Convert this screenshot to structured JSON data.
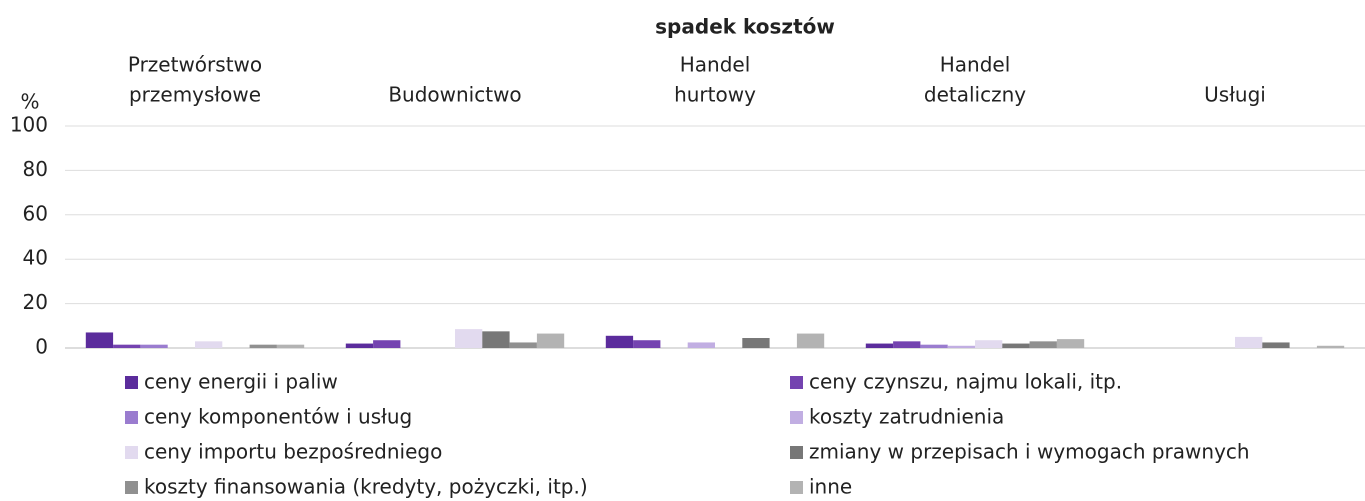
{
  "chart_data": {
    "type": "bar",
    "title": "spadek kosztów",
    "y_label": "%",
    "categories": [
      [
        "Przetwórstwo",
        "przemysłowe"
      ],
      [
        "Budownictwo"
      ],
      [
        "Handel",
        "hurtowy"
      ],
      [
        "Handel",
        "detaliczny"
      ],
      [
        "Usługi"
      ]
    ],
    "series": [
      {
        "name": "ceny energii i paliw",
        "color": "#5b2c9c",
        "values": [
          7,
          2,
          5.5,
          2,
          0
        ]
      },
      {
        "name": "ceny czynszu, najmu lokali, itp.",
        "color": "#7443b0",
        "values": [
          1.5,
          3.5,
          3.5,
          3,
          0
        ]
      },
      {
        "name": "ceny komponentów i usług",
        "color": "#9a7ccf",
        "values": [
          1.5,
          0,
          0,
          1.5,
          0
        ]
      },
      {
        "name": "koszty zatrudnienia",
        "color": "#c1aee2",
        "values": [
          0,
          0,
          2.5,
          1,
          0
        ]
      },
      {
        "name": "ceny importu bezpośredniego",
        "color": "#e2daef",
        "values": [
          3,
          8.5,
          0,
          3.5,
          5
        ]
      },
      {
        "name": "zmiany w przepisach i wymogach prawnych",
        "color": "#777777",
        "values": [
          0,
          7.5,
          4.5,
          2,
          2.5
        ]
      },
      {
        "name": "koszty finansowania (kredyty, pożyczki, itp.)",
        "color": "#909090",
        "values": [
          1.5,
          2.5,
          0,
          3,
          0
        ]
      },
      {
        "name": "inne",
        "color": "#b3b3b3",
        "values": [
          1.5,
          6.5,
          6.5,
          4,
          1
        ]
      }
    ],
    "ylim": [
      0,
      100
    ],
    "yticks": [
      0,
      20,
      40,
      60,
      80,
      100
    ],
    "grid": true
  }
}
